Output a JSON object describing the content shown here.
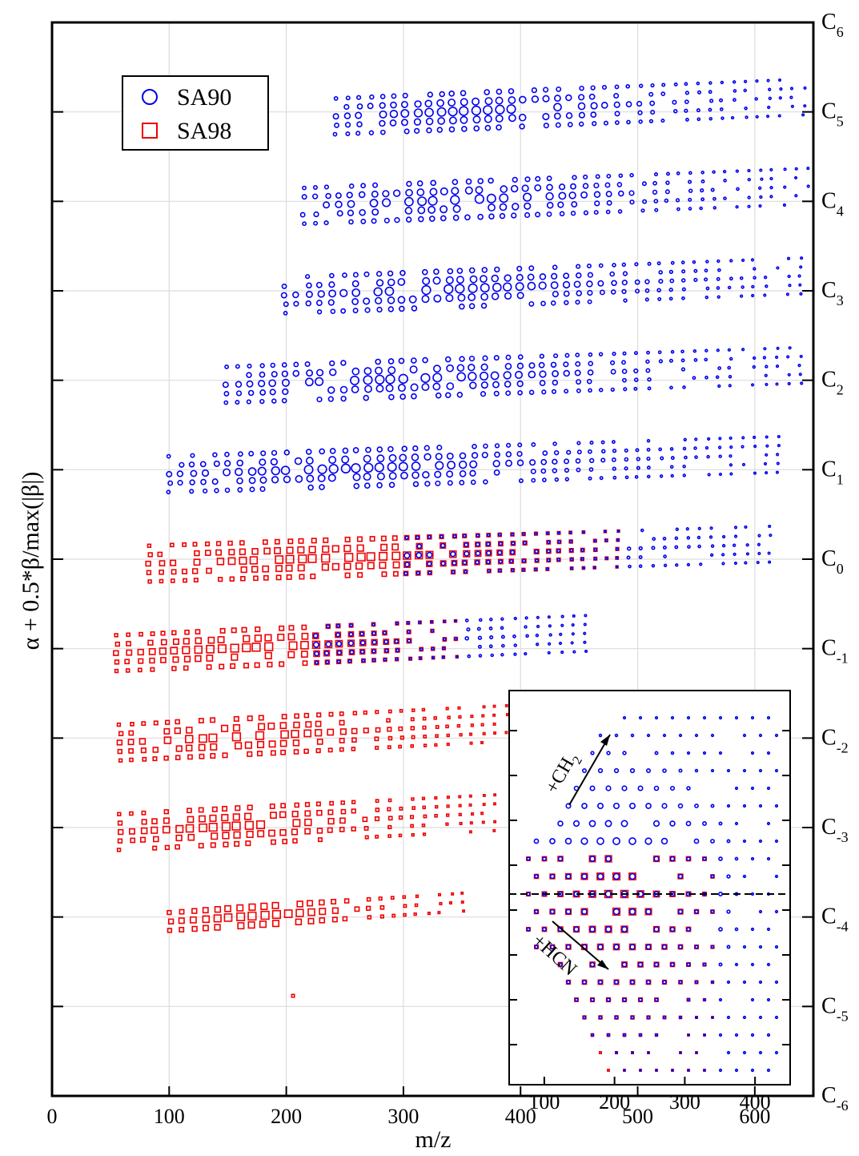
{
  "chart_data": [
    {
      "type": "scatter",
      "title": "",
      "xlabel": "m/z",
      "ylabel": "α + 0.5*β/max(|β|)",
      "xlim": [
        0,
        650
      ],
      "xticks": [
        0,
        100,
        200,
        300,
        400,
        500,
        600
      ],
      "ylim": [
        -6,
        6
      ],
      "grid": true,
      "legend_position": "top-left",
      "right_axis_labels": [
        {
          "base": "C",
          "sub": "6",
          "value": 6
        },
        {
          "base": "C",
          "sub": "5",
          "value": 5
        },
        {
          "base": "C",
          "sub": "4",
          "value": 4
        },
        {
          "base": "C",
          "sub": "3",
          "value": 3
        },
        {
          "base": "C",
          "sub": "2",
          "value": 2
        },
        {
          "base": "C",
          "sub": "1",
          "value": 1
        },
        {
          "base": "C",
          "sub": "0",
          "value": 0
        },
        {
          "base": "C",
          "sub": "-1",
          "value": -1
        },
        {
          "base": "C",
          "sub": "-2",
          "value": -2
        },
        {
          "base": "C",
          "sub": "-3",
          "value": -3
        },
        {
          "base": "C",
          "sub": "-4",
          "value": -4
        },
        {
          "base": "C",
          "sub": "-5",
          "value": -5
        },
        {
          "base": "C",
          "sub": "-6",
          "value": -6
        }
      ],
      "series": [
        {
          "name": "SA90",
          "marker": "circle",
          "color": "#0000ee"
        },
        {
          "name": "SA98",
          "marker": "square",
          "color": "#ee0000"
        }
      ],
      "groups": [
        {
          "alpha": 5,
          "x_start": 242,
          "x_end": 648,
          "dominant": "SA90",
          "rows": [
            -2,
            -1,
            0,
            1,
            2
          ]
        },
        {
          "alpha": 4,
          "x_start": 215,
          "x_end": 648,
          "dominant": "SA90",
          "rows": [
            -2,
            -1,
            0,
            1,
            2
          ]
        },
        {
          "alpha": 3,
          "x_start": 199,
          "x_end": 648,
          "dominant": "SA90",
          "rows": [
            -2,
            -1,
            0,
            1,
            2
          ]
        },
        {
          "alpha": 2,
          "x_start": 149,
          "x_end": 648,
          "dominant": "SA90",
          "rows": [
            -2,
            -1,
            0,
            1,
            2
          ]
        },
        {
          "alpha": 1,
          "x_start": 100,
          "x_end": 620,
          "dominant": "SA90",
          "rows": [
            -2,
            -1,
            0,
            1,
            2
          ]
        },
        {
          "alpha": 0,
          "x_start": 83,
          "x_end": 620,
          "dominant": "mixed",
          "rows": [
            -2,
            -1,
            0,
            1,
            2
          ]
        },
        {
          "alpha": -1,
          "x_start": 55,
          "x_end": 455,
          "dominant": "mixed",
          "rows": [
            -2,
            -1,
            0,
            1,
            2
          ]
        },
        {
          "alpha": -2,
          "x_start": 58,
          "x_end": 400,
          "dominant": "SA98",
          "rows": [
            -2,
            -1,
            0,
            1,
            2
          ]
        },
        {
          "alpha": -3,
          "x_start": 58,
          "x_end": 385,
          "dominant": "SA98",
          "rows": [
            -2,
            -1,
            0,
            1,
            2
          ]
        },
        {
          "alpha": -4,
          "x_start": 101,
          "x_end": 355,
          "dominant": "SA98",
          "rows": [
            -1,
            0,
            1
          ]
        },
        {
          "alpha": -5,
          "x_start": 186,
          "x_end": 212,
          "dominant": "SA98",
          "rows": [
            0
          ]
        }
      ]
    },
    {
      "type": "scatter",
      "title": "",
      "xlabel": "",
      "ylabel": "",
      "xlim": [
        50,
        450
      ],
      "xticks": [
        100,
        200,
        300,
        400
      ],
      "annotations": [
        {
          "text": "+CH",
          "sub": "2"
        },
        {
          "text": "+HCN",
          "sub": ""
        }
      ],
      "reference_line": "dashed horizontal"
    }
  ],
  "legend": {
    "items": [
      {
        "label": "SA90",
        "color": "#0000ee",
        "icon": "circle-icon"
      },
      {
        "label": "SA98",
        "color": "#ee0000",
        "icon": "square-icon"
      }
    ]
  }
}
